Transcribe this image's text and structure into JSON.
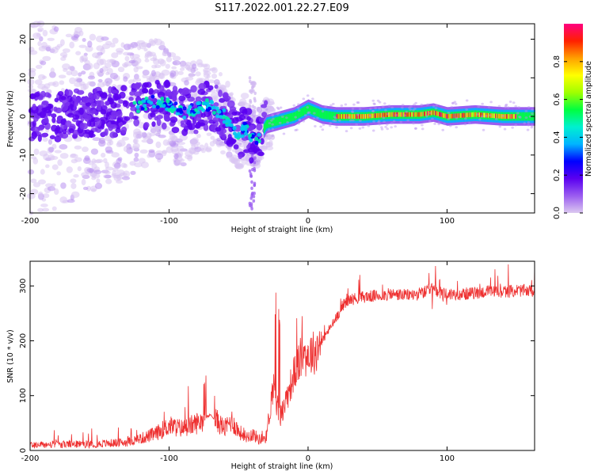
{
  "figure": {
    "title": "S117.2022.001.22.27.E09"
  },
  "chart_data": [
    {
      "type": "heatmap",
      "xlabel": "Height of straight line (km)",
      "ylabel": "Frequency (Hz)",
      "xlim": [
        -200,
        163
      ],
      "ylim": [
        -25,
        24
      ],
      "xticks": [
        -200,
        -100,
        0,
        100
      ],
      "yticks": [
        -20,
        -10,
        0,
        10,
        20
      ],
      "colorbar": {
        "label": "Normalized spectral amplitude",
        "range": [
          0,
          1
        ],
        "ticks": [
          "0.0",
          "0.2",
          "0.4",
          "0.6",
          "0.8"
        ],
        "colors": [
          "#dcc8f0",
          "#9a5cf0",
          "#5a00f0",
          "#0000ff",
          "#00b4ff",
          "#00f0d0",
          "#00ff40",
          "#a0ff00",
          "#ffff00",
          "#ffa000",
          "#ff2000",
          "#ff0080"
        ]
      },
      "ridge": {
        "x": [
          -200,
          -180,
          -160,
          -140,
          -120,
          -110,
          -100,
          -90,
          -80,
          -70,
          -60,
          -55,
          -50,
          -45,
          -40,
          -35,
          -30,
          -20,
          -10,
          0,
          10,
          20,
          40,
          60,
          80,
          90,
          100,
          120,
          140,
          163
        ],
        "y": [
          0,
          0,
          1,
          1,
          3,
          4,
          3,
          1,
          2,
          3,
          0,
          -3,
          -5,
          -3,
          -6,
          -5,
          -2,
          -1,
          0,
          2,
          0.5,
          0,
          0,
          0.5,
          0.5,
          1,
          0,
          0.5,
          0,
          0
        ]
      }
    },
    {
      "type": "line",
      "xlabel": "Height of straight line (km)",
      "ylabel": "SNR (10 * v/v)",
      "xlim": [
        -200,
        163
      ],
      "ylim": [
        0,
        345
      ],
      "xticks": [
        -200,
        -100,
        0,
        100
      ],
      "yticks": [
        0,
        100,
        200,
        300
      ],
      "color": "#ee3030",
      "x": [
        -200,
        -150,
        -130,
        -120,
        -110,
        -100,
        -90,
        -80,
        -70,
        -60,
        -55,
        -50,
        -45,
        -40,
        -35,
        -30,
        -25,
        -22,
        -20,
        -15,
        -10,
        -5,
        0,
        5,
        10,
        15,
        20,
        25,
        30,
        40,
        50,
        60,
        70,
        80,
        85,
        90,
        95,
        100,
        110,
        120,
        130,
        140,
        150,
        163
      ],
      "y": [
        10,
        12,
        15,
        22,
        30,
        45,
        40,
        50,
        65,
        40,
        55,
        35,
        25,
        30,
        20,
        25,
        120,
        80,
        60,
        100,
        140,
        170,
        175,
        180,
        200,
        220,
        240,
        265,
        275,
        280,
        282,
        285,
        283,
        285,
        290,
        295,
        288,
        285,
        285,
        287,
        290,
        288,
        292,
        290
      ]
    }
  ]
}
